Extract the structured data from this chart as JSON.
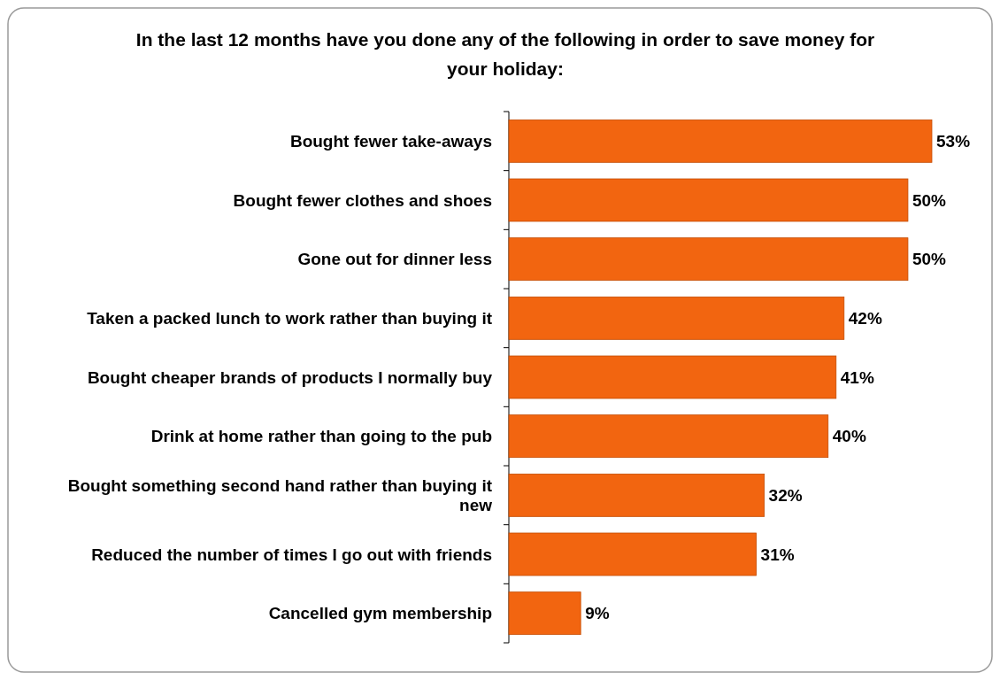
{
  "chart_data": {
    "type": "bar",
    "orientation": "horizontal",
    "title": "In the last 12 months have you done any of the following in order to save money for your holiday:",
    "categories": [
      "Bought fewer take-aways",
      "Bought fewer clothes and shoes",
      "Gone out for dinner less",
      "Taken a packed lunch to work rather than buying it",
      "Bought cheaper brands of products I normally buy",
      "Drink at home rather than going to the pub",
      "Bought something second hand rather than buying it new",
      "Reduced the number of times I go out with friends",
      "Cancelled gym membership"
    ],
    "values": [
      53,
      50,
      50,
      42,
      41,
      40,
      32,
      31,
      9
    ],
    "value_labels": [
      "53%",
      "50%",
      "50%",
      "42%",
      "41%",
      "40%",
      "32%",
      "31%",
      "9%"
    ],
    "color": "#f26510"
  }
}
